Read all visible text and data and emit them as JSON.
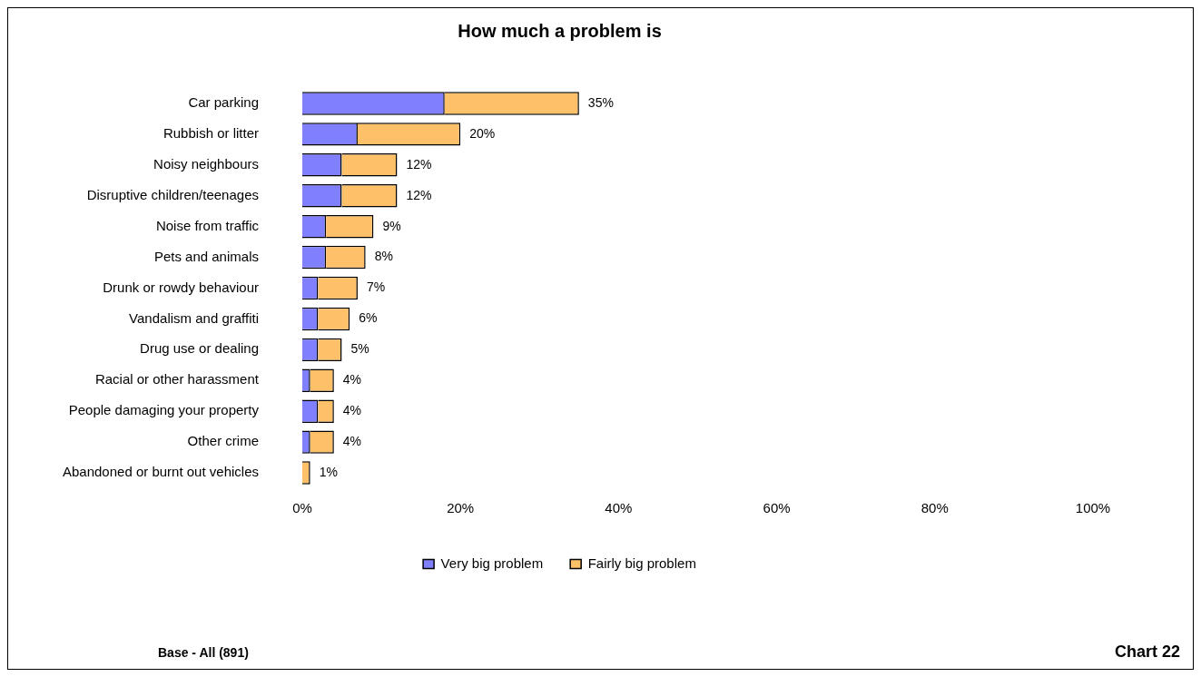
{
  "chart_data": {
    "type": "bar",
    "title": "How much a problem is",
    "orientation": "horizontal",
    "stacked": true,
    "categories": [
      "Car parking",
      "Rubbish or litter",
      "Noisy neighbours",
      "Disruptive children/teenages",
      "Noise from traffic",
      "Pets and animals",
      "Drunk or rowdy behaviour",
      "Vandalism and graffiti",
      "Drug use or dealing",
      "Racial or other harassment",
      "People damaging your property",
      "Other crime",
      "Abandoned or burnt out vehicles"
    ],
    "series": [
      {
        "name": "Very big problem",
        "color": "#8080ff",
        "values": [
          18,
          7,
          5,
          5,
          3,
          3,
          2,
          2,
          2,
          1,
          2,
          1,
          0
        ]
      },
      {
        "name": "Fairly big problem",
        "color": "#ffc06a",
        "values": [
          17,
          13,
          7,
          7,
          6,
          5,
          5,
          4,
          3,
          3,
          2,
          3,
          1
        ]
      }
    ],
    "totals": [
      "35%",
      "20%",
      "12%",
      "12%",
      "9%",
      "8%",
      "7%",
      "6%",
      "5%",
      "4%",
      "4%",
      "4%",
      "1%"
    ],
    "xlim": [
      0,
      100
    ],
    "xticks": [
      {
        "value": 0,
        "label": "0%"
      },
      {
        "value": 20,
        "label": "20%"
      },
      {
        "value": 40,
        "label": "40%"
      },
      {
        "value": 60,
        "label": "60%"
      },
      {
        "value": 80,
        "label": "80%"
      },
      {
        "value": 100,
        "label": "100%"
      }
    ],
    "grid": false,
    "legend": "bottom",
    "annotations": [
      "Base - All (891)",
      "Chart 22"
    ]
  }
}
